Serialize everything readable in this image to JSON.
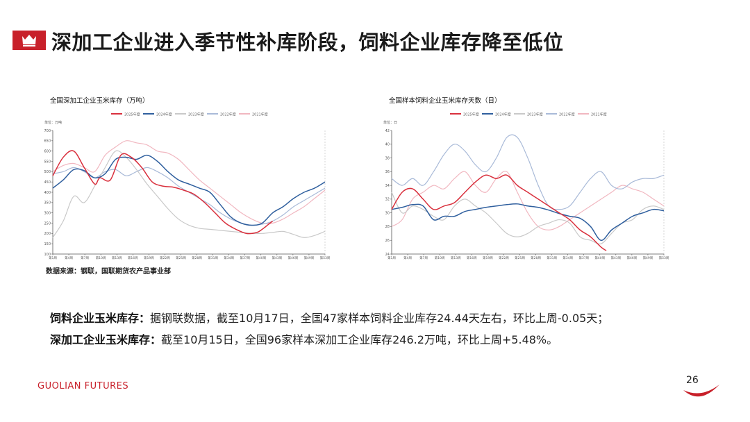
{
  "header": {
    "title": "深加工企业进入季节性补库阶段，饲料企业库存降至低位"
  },
  "source_note": "数据来源：钢联，国联期货农产品事业部",
  "text": {
    "line1_label": "饲料企业玉米库存：",
    "line1_body": "据钢联数据，截至10月17日，全国47家样本饲料企业库存24.44天左右，环比上周-0.05天；",
    "line2_label": "深加工企业玉米库存：",
    "line2_body": "截至10月15日，全国96家样本深加工企业库存246.2万吨，环比上周+5.48%。"
  },
  "footer": {
    "brand": "GUOLIAN FUTURES",
    "page_number": "26"
  },
  "colors": {
    "accent": "#c8202a",
    "s2025": "#d9303d",
    "s2024": "#2f5f9e",
    "s2023": "#c9c9c9",
    "s2022": "#a9bad8",
    "s2021": "#f1b7c0"
  },
  "chart_data": [
    {
      "type": "line",
      "title": "全国深加工企业玉米库存（万吨）",
      "unit_label": "单位：万吨",
      "ylim": [
        100,
        700
      ],
      "yticks": [
        "100",
        "150",
        "200",
        "250",
        "300",
        "350",
        "400",
        "450",
        "500",
        "550",
        "600",
        "650",
        "700"
      ],
      "x_labels": [
        "第1周",
        "第4周",
        "第7周",
        "第10周",
        "第13周",
        "第16周",
        "第19周",
        "第22周",
        "第25周",
        "第28周",
        "第31周",
        "第34周",
        "第37周",
        "第40周",
        "第43周",
        "第46周",
        "第49周",
        "第53周"
      ],
      "x_range": [
        1,
        53
      ],
      "legend": [
        "2025年度",
        "2024年度",
        "2023年度",
        "2022年度",
        "2021年度"
      ],
      "series": [
        {
          "name": "2025年度",
          "x": [
            1,
            3,
            5,
            7,
            9,
            10,
            12,
            14,
            16,
            18,
            20,
            22,
            24,
            26,
            28,
            30,
            32,
            34,
            36,
            38,
            40,
            41,
            42,
            43
          ],
          "values": [
            480,
            570,
            600,
            520,
            440,
            470,
            460,
            580,
            570,
            520,
            450,
            430,
            425,
            410,
            390,
            350,
            300,
            250,
            220,
            200,
            205,
            220,
            240,
            260
          ]
        },
        {
          "name": "2024年度",
          "x": [
            1,
            3,
            5,
            7,
            9,
            11,
            13,
            15,
            17,
            19,
            21,
            23,
            25,
            27,
            29,
            31,
            33,
            35,
            37,
            39,
            41,
            43,
            45,
            47,
            49,
            51,
            53
          ],
          "values": [
            420,
            460,
            510,
            505,
            470,
            490,
            560,
            570,
            560,
            580,
            550,
            500,
            460,
            440,
            420,
            400,
            340,
            280,
            250,
            240,
            250,
            300,
            330,
            370,
            400,
            420,
            450
          ]
        },
        {
          "name": "2023年度",
          "x": [
            1,
            3,
            5,
            7,
            9,
            11,
            13,
            15,
            17,
            19,
            21,
            23,
            25,
            27,
            29,
            31,
            33,
            35,
            37,
            39,
            41,
            43,
            45,
            47,
            49,
            51,
            53
          ],
          "values": [
            180,
            260,
            380,
            350,
            430,
            520,
            600,
            570,
            510,
            440,
            380,
            320,
            270,
            240,
            225,
            220,
            215,
            210,
            205,
            200,
            200,
            205,
            210,
            195,
            180,
            190,
            210
          ]
        },
        {
          "name": "2022年度",
          "x": [
            1,
            3,
            5,
            7,
            9,
            11,
            13,
            15,
            17,
            19,
            21,
            23,
            25,
            27,
            29,
            31,
            33,
            35,
            37,
            39,
            41,
            43,
            45,
            47,
            49,
            51,
            53
          ],
          "values": [
            490,
            500,
            520,
            500,
            470,
            500,
            510,
            480,
            500,
            520,
            500,
            470,
            430,
            400,
            370,
            340,
            300,
            270,
            250,
            240,
            245,
            260,
            290,
            330,
            360,
            390,
            420
          ]
        },
        {
          "name": "2021年度",
          "x": [
            1,
            3,
            5,
            7,
            9,
            11,
            13,
            15,
            17,
            19,
            21,
            23,
            25,
            27,
            29,
            31,
            33,
            35,
            37,
            39,
            41,
            43,
            45,
            47,
            49,
            51,
            53
          ],
          "values": [
            500,
            530,
            540,
            520,
            500,
            580,
            620,
            650,
            640,
            630,
            600,
            590,
            560,
            510,
            460,
            420,
            380,
            340,
            300,
            270,
            250,
            250,
            270,
            300,
            330,
            370,
            410
          ]
        }
      ]
    },
    {
      "type": "line",
      "title": "全国样本饲料企业玉米库存天数（日）",
      "unit_label": "单位：日",
      "ylim": [
        24,
        42
      ],
      "yticks": [
        "24",
        "26",
        "28",
        "30",
        "32",
        "34",
        "36",
        "38",
        "40",
        "42"
      ],
      "x_labels": [
        "第1周",
        "第4周",
        "第7周",
        "第10周",
        "第13周",
        "第16周",
        "第19周",
        "第22周",
        "第25周",
        "第28周",
        "第31周",
        "第34周",
        "第37周",
        "第40周",
        "第43周",
        "第46周",
        "第49周",
        "第53周"
      ],
      "x_range": [
        1,
        53
      ],
      "legend": [
        "2025年度",
        "2024年度",
        "2023年度",
        "2022年度",
        "2021年度"
      ],
      "series": [
        {
          "name": "2025年度",
          "x": [
            1,
            3,
            5,
            7,
            9,
            11,
            13,
            15,
            17,
            19,
            21,
            23,
            25,
            27,
            29,
            31,
            33,
            35,
            37,
            39,
            41,
            42
          ],
          "values": [
            30.5,
            33,
            33.5,
            32,
            30.5,
            31,
            31.5,
            33,
            34.5,
            35.5,
            35,
            35.5,
            34,
            33,
            32,
            31,
            30,
            29,
            27.5,
            26.5,
            25,
            24.5
          ]
        },
        {
          "name": "2024年度",
          "x": [
            1,
            3,
            5,
            7,
            9,
            11,
            13,
            15,
            17,
            19,
            21,
            23,
            25,
            27,
            29,
            31,
            33,
            35,
            37,
            39,
            41,
            43,
            45,
            47,
            49,
            51,
            53
          ],
          "values": [
            30.5,
            30.8,
            31.2,
            31,
            29,
            29.5,
            29.5,
            30.2,
            30.5,
            30.8,
            31,
            31.2,
            31.3,
            31,
            30.8,
            30.4,
            29.9,
            29.5,
            29.2,
            28,
            26,
            27.5,
            28.5,
            29.5,
            30,
            30.5,
            30.3
          ]
        },
        {
          "name": "2023年度",
          "x": [
            1,
            3,
            5,
            7,
            9,
            11,
            13,
            15,
            17,
            19,
            21,
            23,
            25,
            27,
            29,
            31,
            33,
            35,
            37,
            39,
            41,
            43,
            45,
            47,
            49,
            51,
            53
          ],
          "values": [
            33,
            30,
            31,
            30.5,
            29.5,
            29,
            31,
            32,
            31,
            30,
            28.5,
            27,
            26.5,
            27,
            28,
            28.5,
            29,
            28.5,
            26.5,
            26,
            25.5,
            27,
            28.5,
            29,
            30.5,
            31,
            30.5
          ]
        },
        {
          "name": "2022年度",
          "x": [
            1,
            3,
            5,
            7,
            9,
            11,
            13,
            15,
            17,
            19,
            21,
            23,
            25,
            27,
            29,
            31,
            33,
            35,
            37,
            39,
            41,
            43,
            45,
            47,
            49,
            51,
            53
          ],
          "values": [
            35,
            34,
            35,
            34,
            36,
            38.5,
            40,
            39,
            37,
            36,
            38,
            41,
            41,
            38,
            34,
            31,
            30.5,
            31,
            33,
            35,
            36,
            34,
            33.5,
            34.5,
            35,
            35,
            35.5
          ]
        },
        {
          "name": "2021年度",
          "x": [
            1,
            3,
            5,
            7,
            9,
            11,
            13,
            15,
            17,
            19,
            21,
            23,
            25,
            27,
            29,
            31,
            33,
            35,
            37,
            39,
            41,
            43,
            45,
            47,
            49,
            51,
            53
          ],
          "values": [
            28,
            29,
            32,
            33,
            34,
            33.5,
            35,
            36,
            34,
            33,
            35,
            36,
            33,
            30,
            28,
            27.5,
            28,
            29,
            30,
            31,
            32,
            33,
            34,
            33.5,
            33,
            32,
            31
          ]
        }
      ]
    }
  ]
}
